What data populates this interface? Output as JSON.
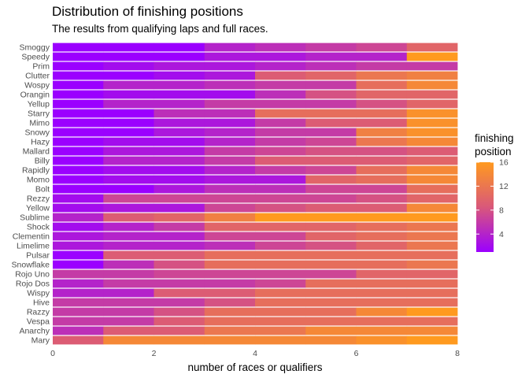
{
  "chart_data": {
    "type": "bar",
    "orientation": "horizontal",
    "stacked": true,
    "title": "Distribution of finishing positions",
    "subtitle": "The results from qualifying laps and full races.",
    "xlabel": "number of races or qualifiers",
    "xlim": [
      0,
      8
    ],
    "xticks": [
      0,
      2,
      4,
      6,
      8
    ],
    "legend": {
      "title_lines": [
        "finishing",
        "position"
      ],
      "ticks": [
        4,
        8,
        12,
        16
      ],
      "range": [
        1,
        16
      ],
      "placement": "right"
    },
    "colors": {
      "low": "#9b00ff",
      "mid": "#d9587a",
      "high": "#ff9a1f"
    },
    "grid": false,
    "categories": [
      "Smoggy",
      "Speedy",
      "Prim",
      "Clutter",
      "Wospy",
      "Orangin",
      "Yellup",
      "Starry",
      "Mimo",
      "Snowy",
      "Hazy",
      "Mallard",
      "Billy",
      "Rapidly",
      "Momo",
      "Bolt",
      "Rezzy",
      "Yellow",
      "Sublime",
      "Shock",
      "Clementin",
      "Limelime",
      "Pulsar",
      "Snowflake",
      "Rojo Uno",
      "Rojo Dos",
      "Wispy",
      "Hive",
      "Razzy",
      "Vespa",
      "Anarchy",
      "Mary"
    ],
    "positions": [
      [
        1,
        1,
        1,
        4,
        5,
        6,
        7,
        10
      ],
      [
        1,
        1,
        1,
        3,
        3,
        4,
        4,
        16
      ],
      [
        1,
        2,
        3,
        3,
        4,
        5,
        6,
        6
      ],
      [
        1,
        1,
        2,
        3,
        9,
        10,
        12,
        13
      ],
      [
        1,
        4,
        4,
        5,
        6,
        6,
        11,
        14
      ],
      [
        1,
        2,
        2,
        2,
        5,
        8,
        10,
        10
      ],
      [
        1,
        4,
        4,
        6,
        6,
        6,
        8,
        10
      ],
      [
        1,
        1,
        5,
        5,
        11,
        11,
        11,
        15
      ],
      [
        1,
        1,
        3,
        3,
        6,
        9,
        9,
        15
      ],
      [
        1,
        1,
        3,
        4,
        6,
        6,
        13,
        15
      ],
      [
        1,
        2,
        2,
        4,
        6,
        7,
        12,
        14
      ],
      [
        1,
        3,
        3,
        6,
        7,
        8,
        8,
        9
      ],
      [
        1,
        4,
        4,
        6,
        9,
        9,
        9,
        10
      ],
      [
        1,
        2,
        2,
        4,
        6,
        7,
        11,
        14
      ],
      [
        1,
        2,
        2,
        3,
        3,
        10,
        11,
        14
      ],
      [
        1,
        1,
        3,
        5,
        5,
        7,
        7,
        11
      ],
      [
        2,
        7,
        7,
        7,
        7,
        7,
        8,
        10
      ],
      [
        2,
        3,
        3,
        7,
        8,
        9,
        9,
        14
      ],
      [
        4,
        9,
        10,
        13,
        16,
        16,
        16,
        16
      ],
      [
        2,
        4,
        6,
        10,
        10,
        10,
        11,
        12
      ],
      [
        3,
        4,
        4,
        7,
        7,
        10,
        11,
        12
      ],
      [
        3,
        4,
        4,
        5,
        7,
        8,
        10,
        12
      ],
      [
        1,
        9,
        9,
        11,
        11,
        11,
        11,
        11
      ],
      [
        1,
        5,
        8,
        11,
        11,
        11,
        11,
        12
      ],
      [
        6,
        6,
        7,
        7,
        7,
        7,
        10,
        10
      ],
      [
        6,
        6,
        6,
        4,
        7,
        11,
        11,
        11
      ],
      [
        4,
        4,
        9,
        9,
        11,
        11,
        11,
        11
      ],
      [
        6,
        6,
        6,
        8,
        11,
        11,
        11,
        11
      ],
      [
        6,
        6,
        8,
        11,
        11,
        11,
        14,
        16
      ],
      [
        6,
        6,
        9,
        11,
        11,
        11,
        11,
        11
      ],
      [
        5,
        9,
        9,
        12,
        12,
        14,
        14,
        14
      ],
      [
        9,
        14,
        14,
        14,
        14,
        14,
        15,
        16
      ]
    ]
  }
}
